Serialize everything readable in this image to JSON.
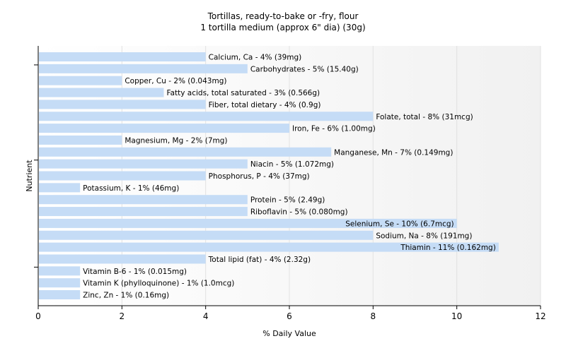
{
  "chart_data": {
    "type": "bar",
    "orientation": "horizontal",
    "title": "Tortillas, ready-to-bake or -fry, flour",
    "subtitle": "1 tortilla medium (approx 6\" dia) (30g)",
    "xlabel": "% Daily Value",
    "ylabel": "Nutrient",
    "xlim": [
      0,
      12
    ],
    "xticks": [
      0,
      2,
      4,
      6,
      8,
      10,
      12
    ],
    "grid": true,
    "bar_color": "#c5dcf6",
    "categories": [
      "Calcium, Ca",
      "Carbohydrates",
      "Copper, Cu",
      "Fatty acids, total saturated",
      "Fiber, total dietary",
      "Folate, total",
      "Iron, Fe",
      "Magnesium, Mg",
      "Manganese, Mn",
      "Niacin",
      "Phosphorus, P",
      "Potassium, K",
      "Protein",
      "Riboflavin",
      "Selenium, Se",
      "Sodium, Na",
      "Thiamin",
      "Total lipid (fat)",
      "Vitamin B-6",
      "Vitamin K (phylloquinone)",
      "Zinc, Zn"
    ],
    "values": [
      4,
      5,
      2,
      3,
      4,
      8,
      6,
      2,
      7,
      5,
      4,
      1,
      5,
      5,
      10,
      8,
      11,
      4,
      1,
      1,
      1
    ],
    "labels": [
      "Calcium, Ca - 4% (39mg)",
      "Carbohydrates - 5% (15.40g)",
      "Copper, Cu - 2% (0.043mg)",
      "Fatty acids, total saturated - 3% (0.566g)",
      "Fiber, total dietary - 4% (0.9g)",
      "Folate, total - 8% (31mcg)",
      "Iron, Fe - 6% (1.00mg)",
      "Magnesium, Mg - 2% (7mg)",
      "Manganese, Mn - 7% (0.149mg)",
      "Niacin - 5% (1.072mg)",
      "Phosphorus, P - 4% (37mg)",
      "Potassium, K - 1% (46mg)",
      "Protein - 5% (2.49g)",
      "Riboflavin - 5% (0.080mg)",
      "Selenium, Se - 10% (6.7mcg)",
      "Sodium, Na - 8% (191mg)",
      "Thiamin - 11% (0.162mg)",
      "Total lipid (fat) - 4% (2.32g)",
      "Vitamin B-6 - 1% (0.015mg)",
      "Vitamin K (phylloquinone) - 1% (1.0mcg)",
      "Zinc, Zn - 1% (0.16mg)"
    ]
  }
}
